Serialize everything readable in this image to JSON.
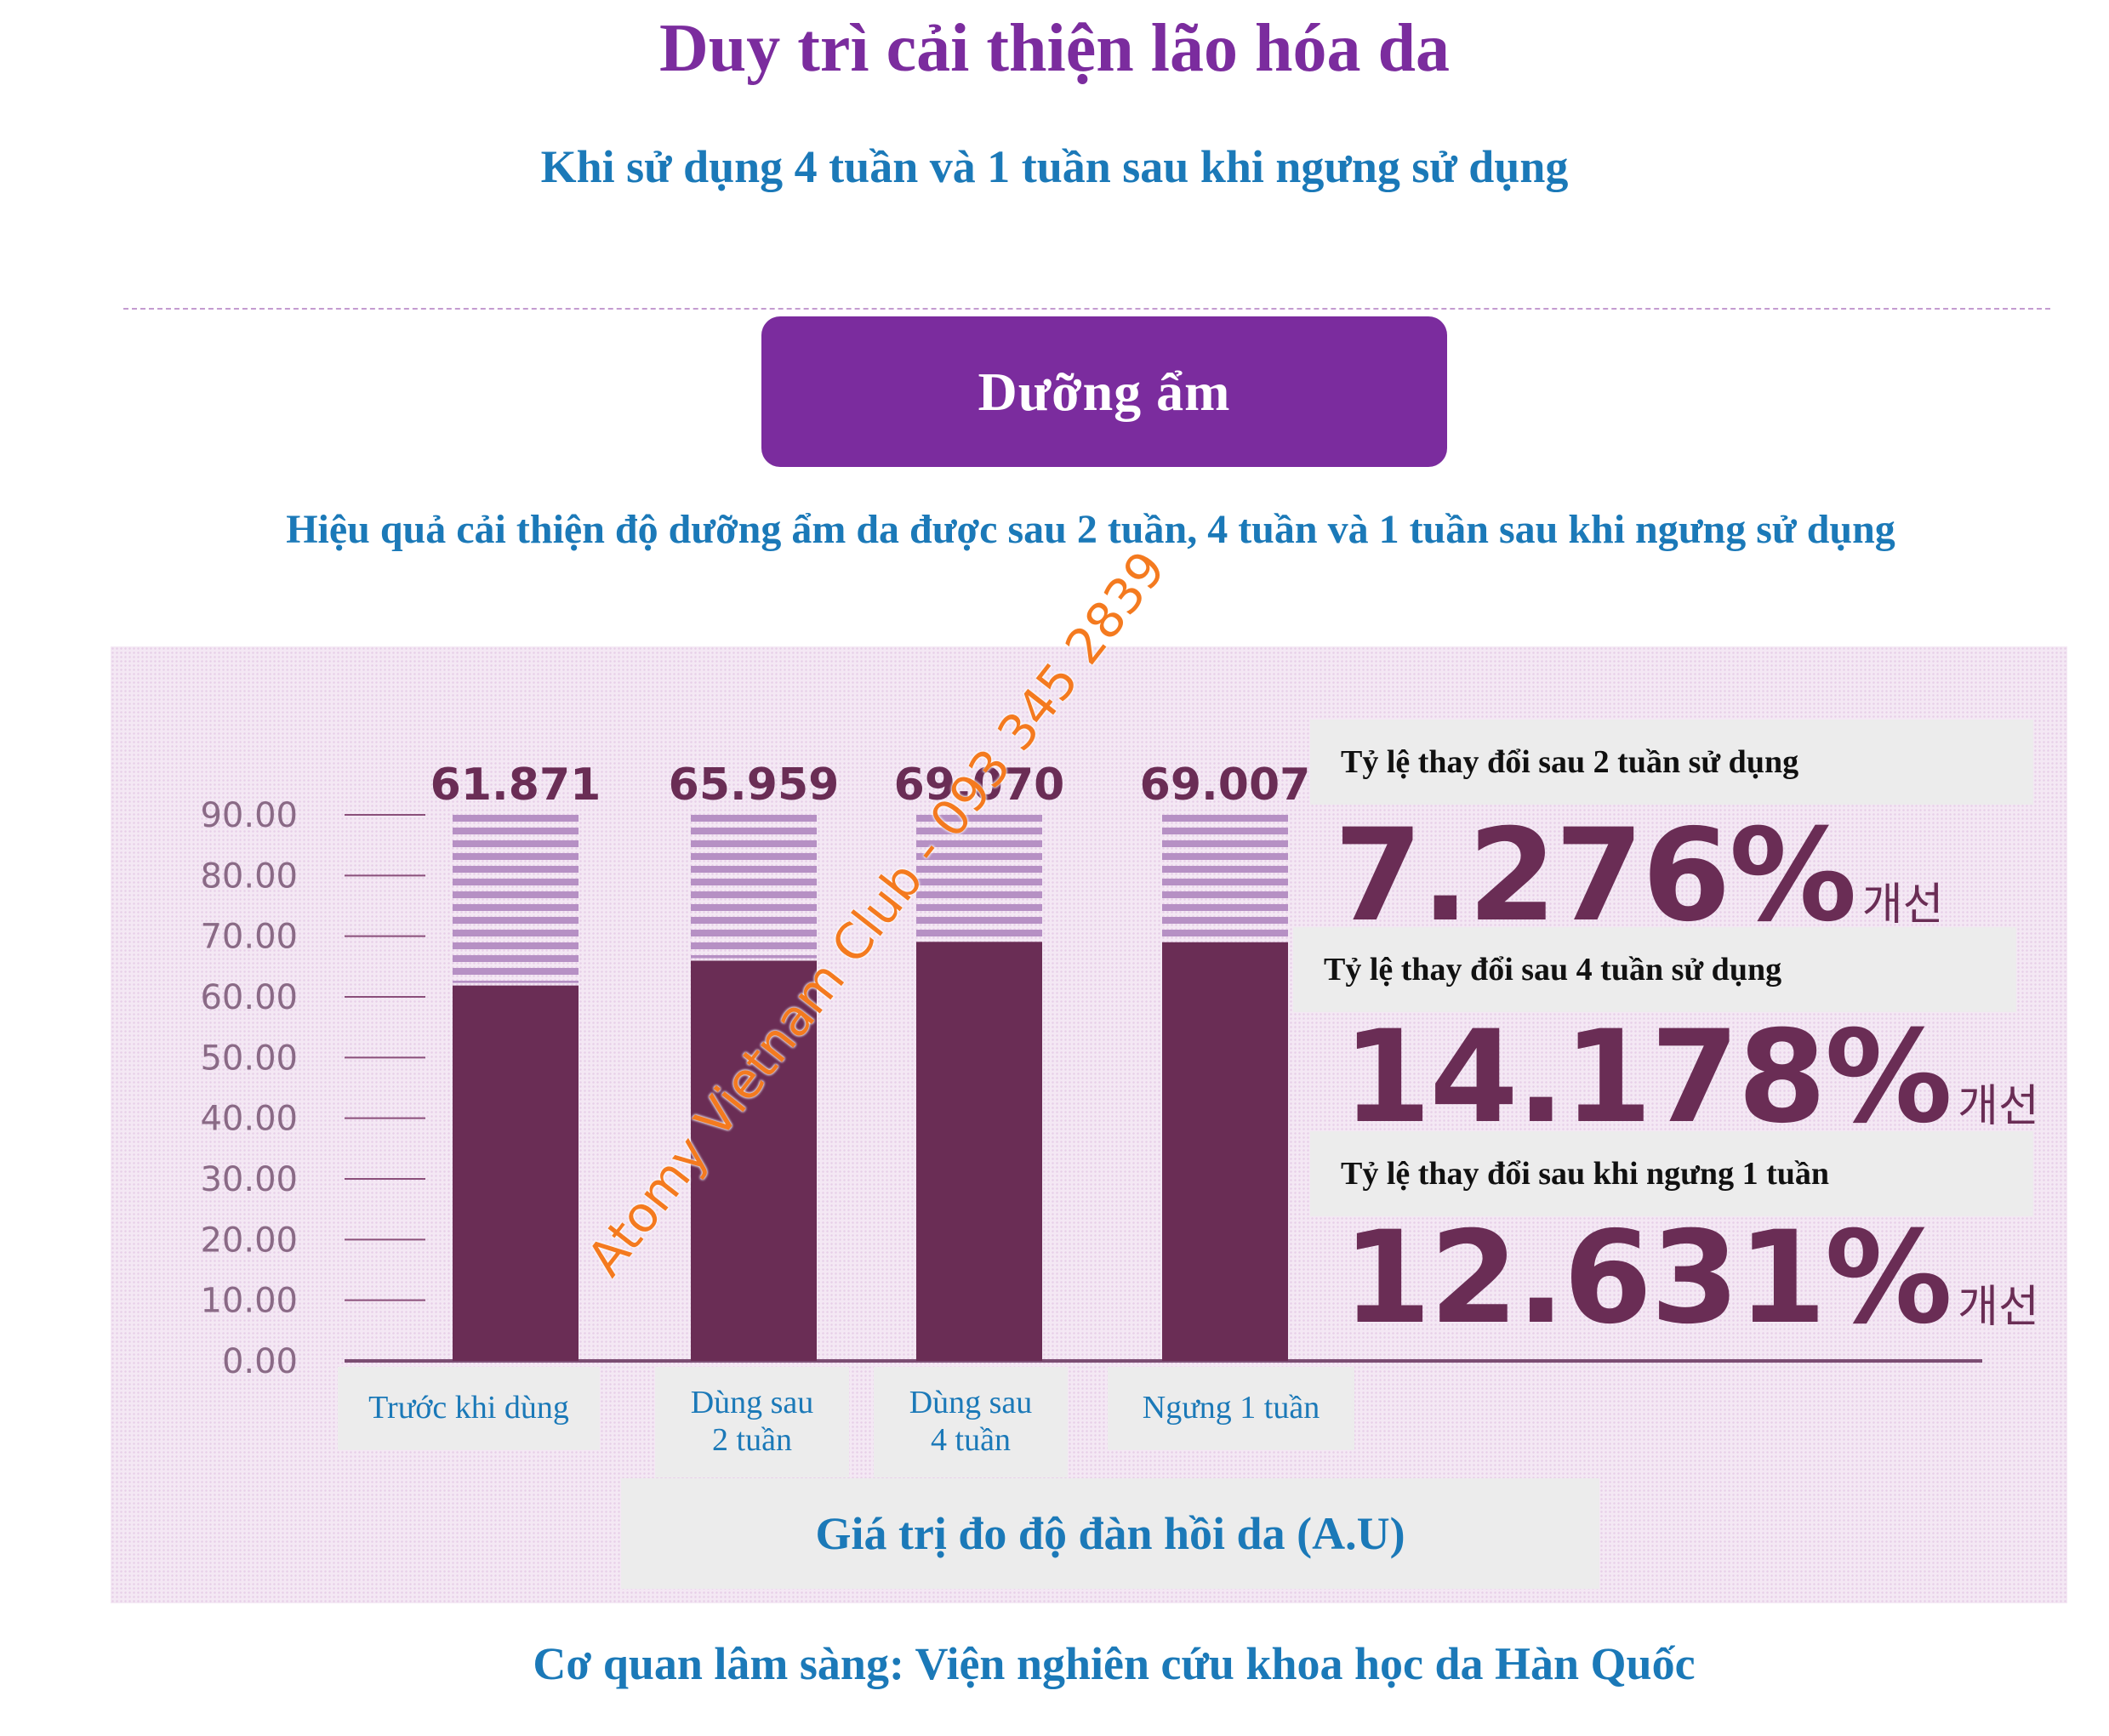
{
  "title": "Duy trì cải thiện lão hóa da",
  "subtitle": "Khi sử dụng 4 tuần và 1 tuần sau khi ngưng sử dụng",
  "section_label": "Dưỡng ẩm",
  "caption": "Hiệu quả cải thiện độ dưỡng ẩm da được sau 2 tuần, 4 tuần và 1 tuần sau khi ngưng sử dụng",
  "source": "Cơ quan lâm sàng: Viện nghiên cứu khoa học da Hàn Quốc",
  "watermark": "Atomy Vietnam Club - 093 345 2839",
  "stats": [
    {
      "label": "Tỷ lệ thay đổi sau 2 tuần sử dụng",
      "value": "7.276%",
      "suffix": "개선"
    },
    {
      "label": "Tỷ lệ thay đổi sau 4 tuần sử dụng",
      "value": "14.178%",
      "suffix": "개선"
    },
    {
      "label": "Tỷ lệ thay đổi sau khi ngưng 1 tuần",
      "value": "12.631%",
      "suffix": "개선"
    }
  ],
  "colors": {
    "accent": "#7b2c9e",
    "text_blue": "#1b79b8",
    "bar": "#6a2d55",
    "bar_stripe": "#b690c4"
  },
  "chart_data": {
    "type": "bar",
    "categories": [
      "Trước khi dùng",
      "Dùng sau 2 tuần",
      "Dùng sau 4 tuần",
      "Ngưng 1 tuần"
    ],
    "category_lines": [
      [
        "Trước khi dùng"
      ],
      [
        "Dùng sau",
        "2 tuần"
      ],
      [
        "Dùng sau",
        "4 tuần"
      ],
      [
        "Ngưng 1 tuần"
      ]
    ],
    "values": [
      61.871,
      65.959,
      69.07,
      69.007
    ],
    "value_labels": [
      "61.871",
      "65.959",
      "69.070",
      "69.007"
    ],
    "xlabel": "Giá trị đo độ đàn hồi da (A.U)",
    "ylim": [
      0,
      90
    ],
    "yticks": [
      "0.00",
      "10.00",
      "20.00",
      "30.00",
      "40.00",
      "50.00",
      "60.00",
      "70.00",
      "80.00",
      "90.00"
    ],
    "grid": false
  }
}
